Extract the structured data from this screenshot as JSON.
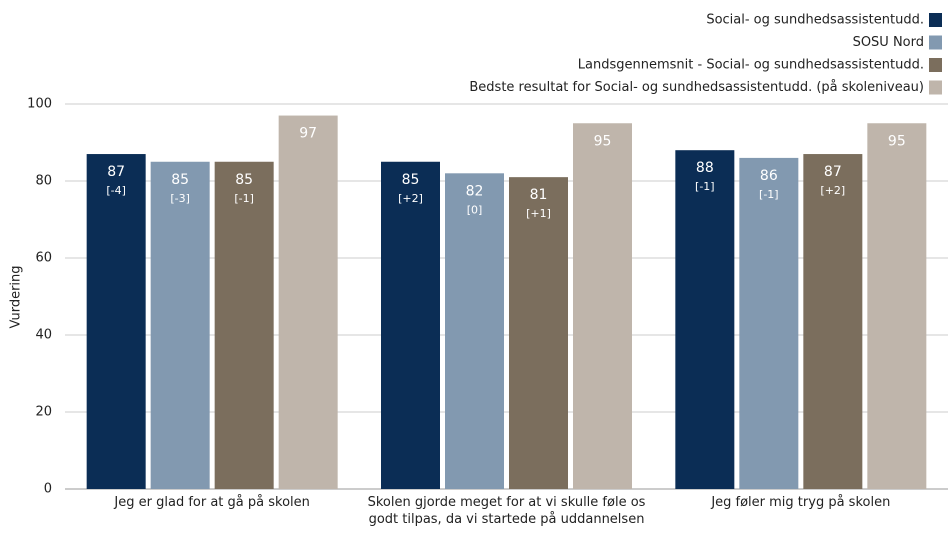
{
  "chart_data": {
    "type": "bar",
    "y_label": "Vurdering",
    "categories": [
      "Jeg er glad for at gå på skolen",
      "Skolen gjorde meget for at vi skulle føle os godt tilpas, da vi startede på uddannelsen",
      "Jeg føler mig tryg på skolen"
    ],
    "series": [
      {
        "name": "Social- og sundhedsassistentudd.",
        "color": "#0b2d55",
        "values": [
          87,
          85,
          88
        ],
        "change_labels": [
          "[-4]",
          "[+2]",
          "[-1]"
        ]
      },
      {
        "name": "SOSU Nord",
        "color": "#8299b0",
        "values": [
          85,
          82,
          86
        ],
        "change_labels": [
          "[-3]",
          "[0]",
          "[-1]"
        ]
      },
      {
        "name": "Landsgennemsnit - Social- og sundhedsassistentudd.",
        "color": "#7b6e5d",
        "values": [
          85,
          81,
          87
        ],
        "change_labels": [
          "[-1]",
          "[+1]",
          "[+2]"
        ]
      },
      {
        "name": "Bedste resultat for Social- og sundhedsassistentudd. (på skoleniveau)",
        "color": "#bfb5ab",
        "values": [
          97,
          95,
          95
        ]
      }
    ],
    "ylim": [
      0,
      100
    ],
    "yticks": [
      0,
      20,
      40,
      60,
      80,
      100
    ],
    "grid": true,
    "legend": "top-right"
  }
}
